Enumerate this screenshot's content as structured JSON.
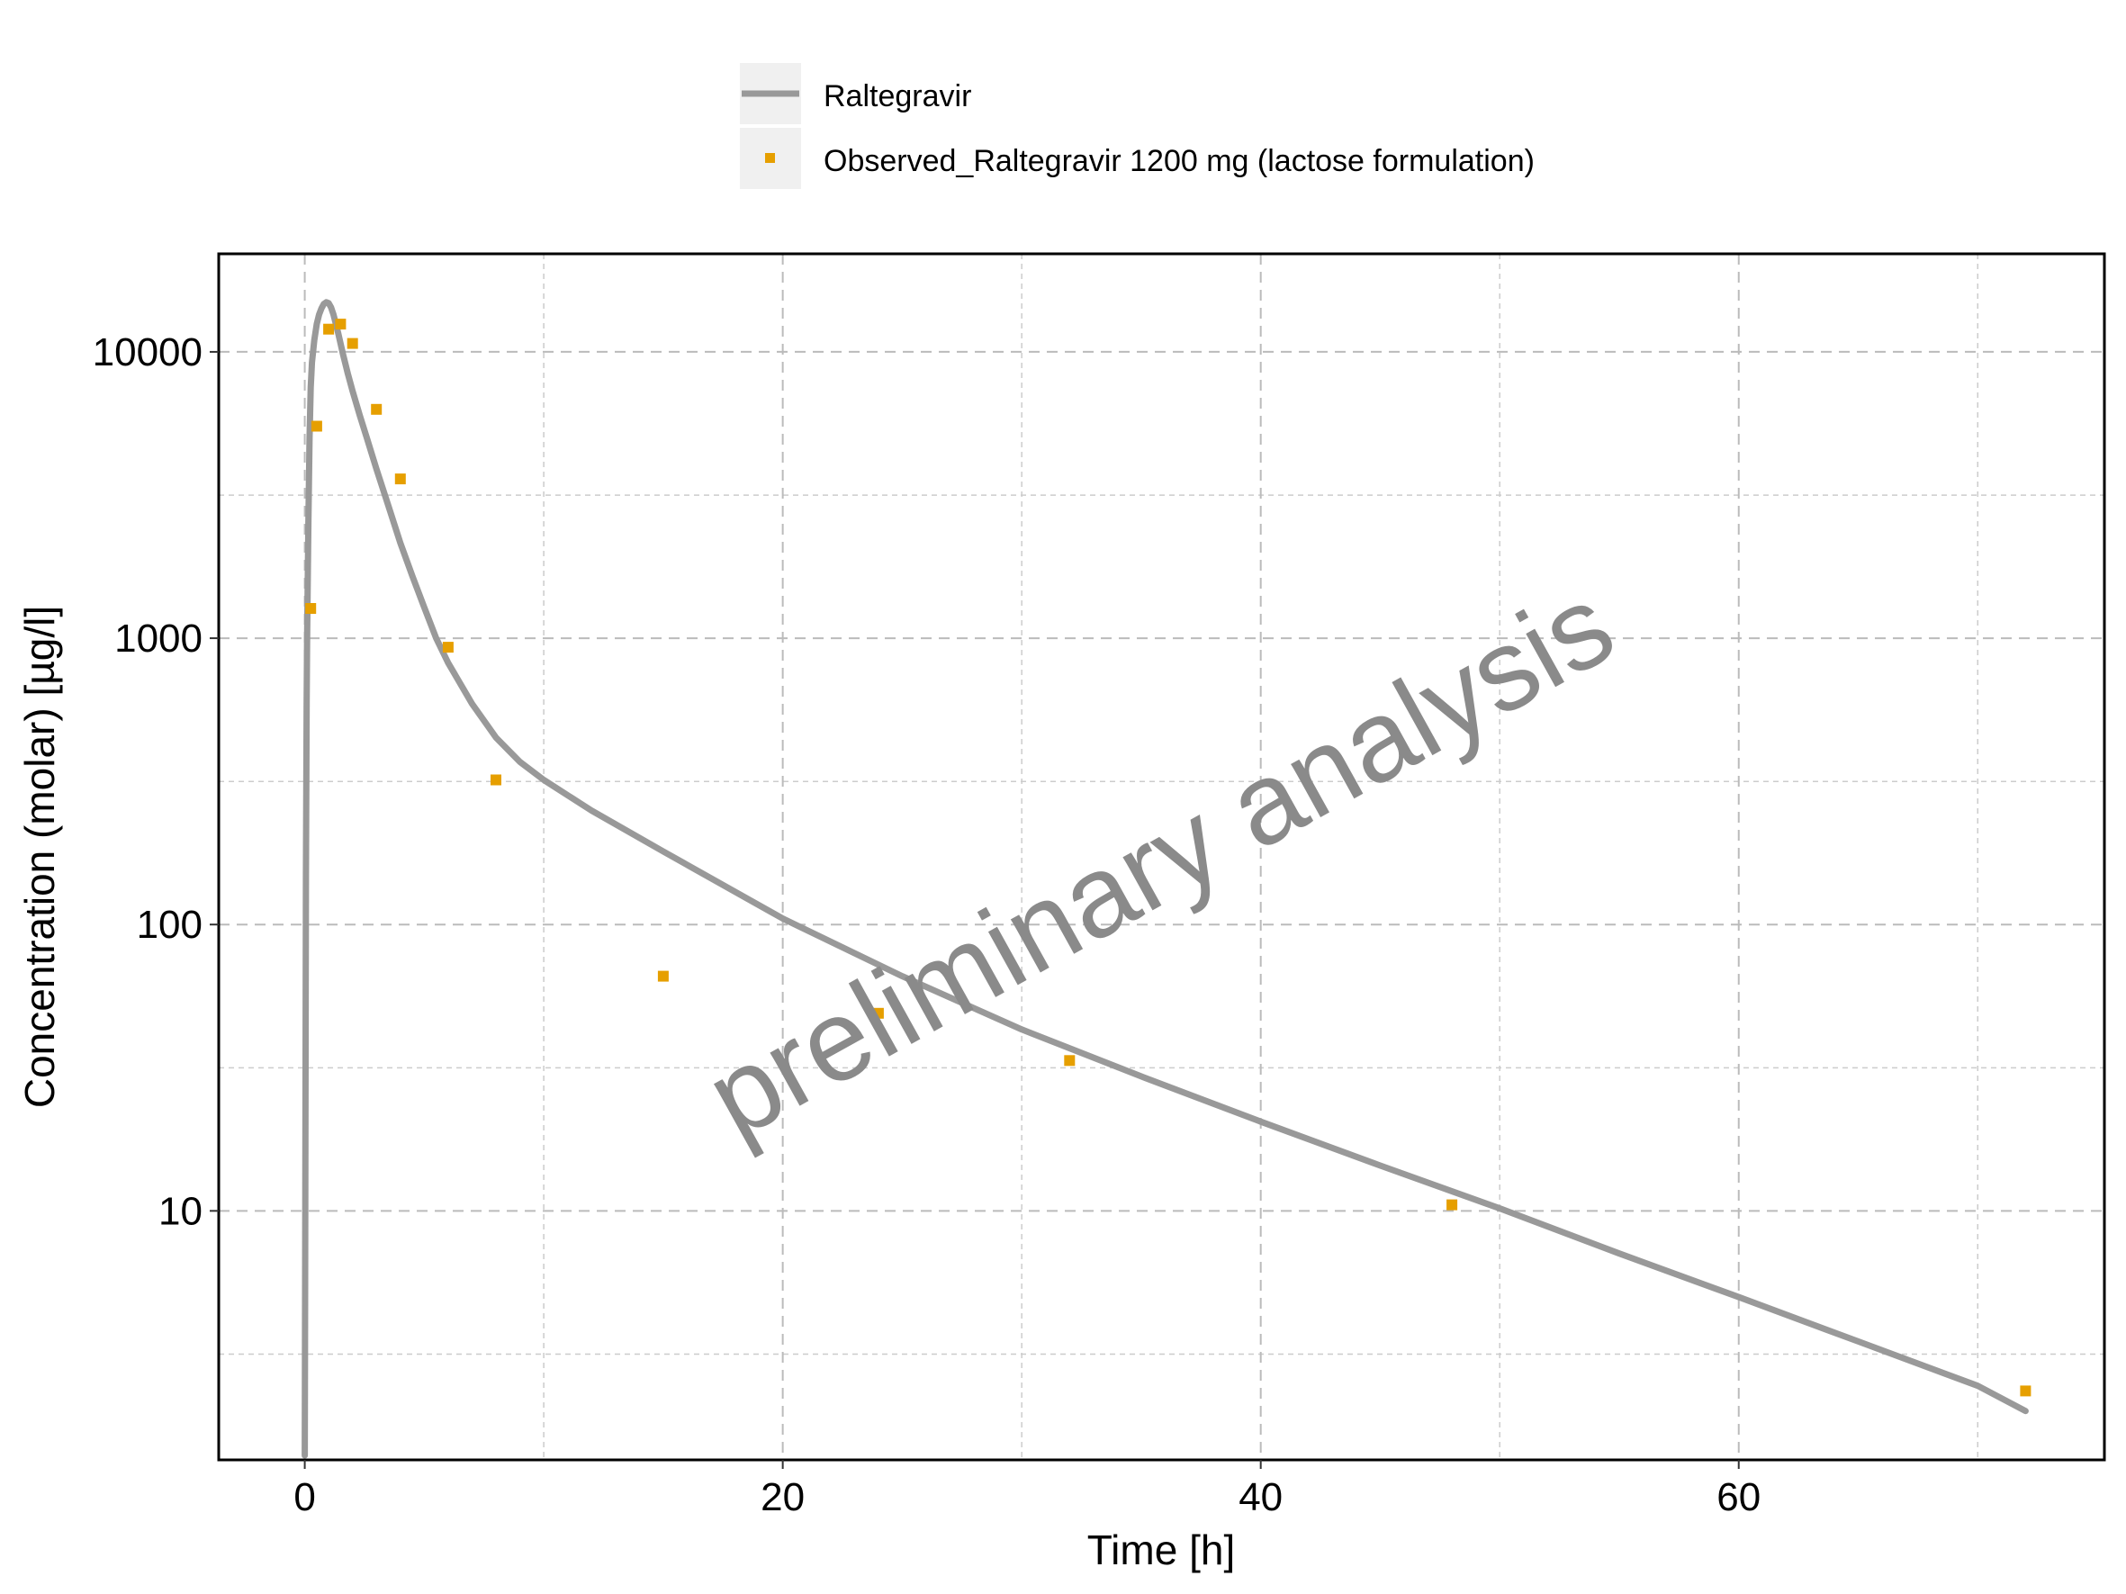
{
  "chart_data": {
    "type": "line",
    "title": "",
    "xlabel": "Time [h]",
    "ylabel": "Concentration (molar) [µg/l]",
    "x_scale": "linear",
    "y_scale": "log10",
    "xlim": [
      -3.6,
      75.3
    ],
    "ylim": [
      1.35,
      22000
    ],
    "x_ticks": [
      0,
      20,
      40,
      60
    ],
    "x_minor_ticks": [
      10,
      30,
      50,
      70
    ],
    "y_ticks": [
      10,
      100,
      1000,
      10000
    ],
    "y_tick_labels": [
      "10",
      "100",
      "1000",
      "10000"
    ],
    "y_minor_ticks": [
      3.16,
      31.6,
      316,
      3160
    ],
    "grid": true,
    "legend_position": "top",
    "watermark": "preliminary analysis",
    "colors": {
      "simulated": "#999999",
      "observed": "#E69F00",
      "grid": "#cccccc",
      "legend_key_bg": "#f0f0f0",
      "watermark": "#8a8a8a"
    },
    "series": [
      {
        "name": "Raltegravir",
        "kind": "line",
        "x": [
          0,
          0.02,
          0.05,
          0.08,
          0.1,
          0.15,
          0.2,
          0.25,
          0.3,
          0.4,
          0.5,
          0.6,
          0.7,
          0.8,
          0.9,
          1.0,
          1.1,
          1.2,
          1.4,
          1.6,
          1.8,
          2.0,
          2.3,
          2.6,
          3.0,
          3.5,
          4.0,
          4.5,
          5.0,
          5.5,
          6.0,
          7.0,
          8.0,
          9.0,
          10.0,
          12.0,
          15.0,
          20.0,
          25.0,
          30.0,
          35.0,
          40.0,
          45.0,
          50.0,
          55.0,
          60.0,
          65.0,
          70.0,
          72.0
        ],
        "y": [
          1.4,
          8,
          150,
          600,
          1000,
          2500,
          5000,
          7500,
          9200,
          11000,
          12500,
          13500,
          14200,
          14700,
          14900,
          14800,
          14300,
          13500,
          11600,
          9800,
          8400,
          7300,
          6000,
          5000,
          3900,
          2900,
          2150,
          1650,
          1280,
          1000,
          820,
          590,
          450,
          370,
          320,
          250,
          180,
          105,
          66,
          43,
          29.5,
          20.5,
          14.4,
          10.2,
          7.1,
          5.0,
          3.5,
          2.45,
          2.0
        ]
      },
      {
        "name": "Observed_Raltegravir 1200 mg (lactose formulation)",
        "kind": "points",
        "x": [
          0.25,
          0.5,
          1.0,
          1.5,
          2.0,
          3.0,
          4.0,
          6.0,
          8.0,
          15.0,
          24.0,
          32.0,
          48.0,
          72.0
        ],
        "y": [
          1270,
          5500,
          12000,
          12500,
          10700,
          6300,
          3600,
          930,
          320,
          66,
          49,
          33.5,
          10.5,
          2.35
        ]
      }
    ]
  }
}
